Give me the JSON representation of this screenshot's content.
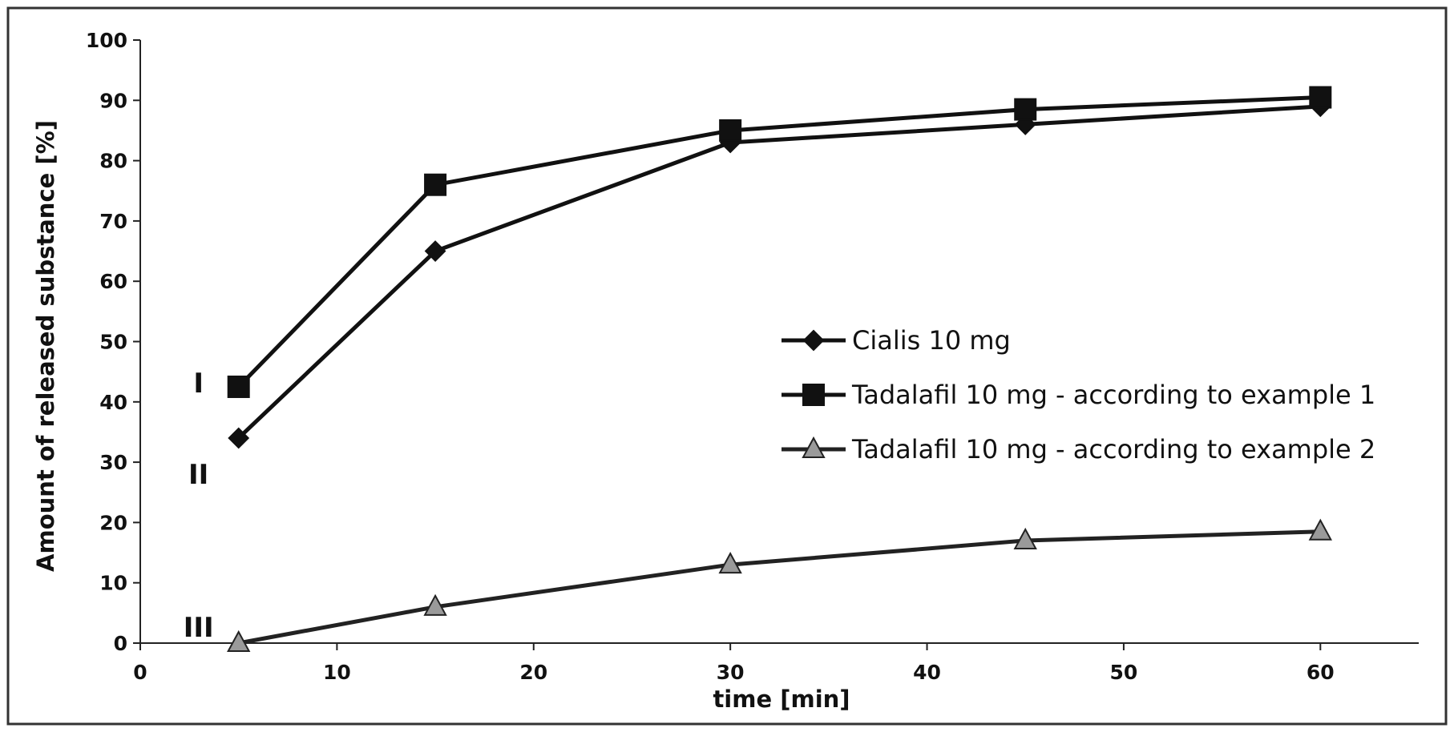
{
  "chart_data": {
    "type": "line",
    "title": "",
    "xlabel": "time [min]",
    "ylabel": "Amount of released substance [%]",
    "xlim": [
      0,
      65
    ],
    "ylim": [
      0,
      100
    ],
    "xticks": [
      0,
      10,
      20,
      30,
      40,
      50,
      60
    ],
    "yticks": [
      0,
      10,
      20,
      30,
      40,
      50,
      60,
      70,
      80,
      90,
      100
    ],
    "grid": false,
    "legend_position": "center-right",
    "x": [
      5,
      15,
      30,
      45,
      60
    ],
    "series": [
      {
        "name": "Cialis 10 mg",
        "values": [
          34,
          65,
          83,
          86,
          89
        ],
        "marker": "diamond",
        "color": "#111111",
        "curve_label": "II"
      },
      {
        "name": "Tadalafil 10 mg - according to example 1",
        "values": [
          42.5,
          76,
          85,
          88.5,
          90.5
        ],
        "marker": "square",
        "color": "#111111",
        "curve_label": "I"
      },
      {
        "name": "Tadalafil 10 mg - according to example 2",
        "values": [
          0,
          6,
          13,
          17,
          18.5
        ],
        "marker": "triangle",
        "color": "#222222",
        "marker_fill": "#9a9a9a",
        "curve_label": "III"
      }
    ]
  }
}
